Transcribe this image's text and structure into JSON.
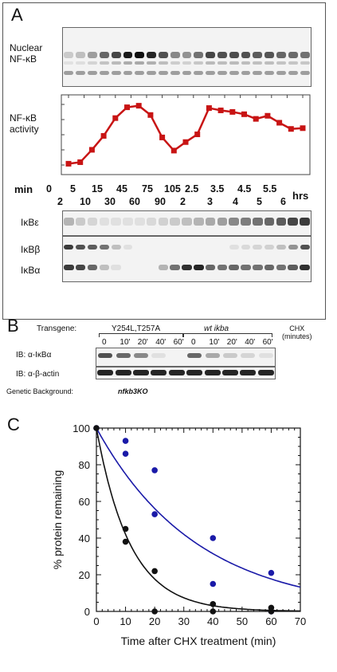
{
  "panelA": {
    "letter": "A",
    "nuclear_label": [
      "Nuclear",
      "NF-κB"
    ],
    "activity_label": [
      "NF-κB",
      "activity"
    ],
    "min_label": "min",
    "hrs_label": "hrs",
    "top_ticks": [
      "0",
      "5",
      "15",
      "45",
      "75",
      "105",
      "2.5",
      "3.5",
      "4.5",
      "5.5"
    ],
    "bottom_ticks": [
      "2",
      "10",
      "30",
      "60",
      "90",
      "2",
      "3",
      "4",
      "5",
      "6"
    ],
    "ikbe_label": "IκBε",
    "ikbb_label": "IκBβ",
    "ikba_label": "IκBα"
  },
  "panelB": {
    "letter": "B",
    "transgene_label": "Transgene:",
    "group1": "Y254L,T257A",
    "group2": "wt ikba",
    "chx_label": [
      "CHX",
      "(minutes)"
    ],
    "times1": [
      "0",
      "10'",
      "20'",
      "40'",
      "60'"
    ],
    "times2": [
      "0",
      "10'",
      "20'",
      "40'",
      "60'"
    ],
    "ib1": "IB: α-IκBα",
    "ib2": "IB: α-β-actin",
    "genetic_label": "Genetic Background:",
    "genetic_value": "nfkb3KO"
  },
  "panelC": {
    "letter": "C"
  },
  "chart_data": [
    {
      "type": "line",
      "series": [
        {
          "values": [
            13,
            15,
            31,
            49,
            72,
            86,
            88,
            76,
            47,
            30,
            41,
            51,
            85,
            82,
            80,
            77,
            71,
            75,
            66,
            58,
            59
          ]
        }
      ],
      "color": "#c81414"
    },
    {
      "type": "scatter",
      "xlabel": "Time after CHX treatment (min)",
      "ylabel": "% protein remaining",
      "xlim": [
        0,
        70
      ],
      "ylim": [
        0,
        100
      ],
      "xticks": [
        "0",
        "10",
        "20",
        "30",
        "40",
        "50",
        "60",
        "70"
      ],
      "yticks": [
        "0",
        "20",
        "40",
        "60",
        "80",
        "100"
      ],
      "series": [
        {
          "color": "#1a1aa8",
          "points": [
            [
              0,
              100
            ],
            [
              10,
              93
            ],
            [
              10,
              86
            ],
            [
              20,
              77
            ],
            [
              20,
              53
            ],
            [
              40,
              40
            ],
            [
              40,
              15
            ],
            [
              60,
              21
            ],
            [
              60,
              0
            ]
          ],
          "fit_halflife_min": 24
        },
        {
          "color": "#111111",
          "points": [
            [
              0,
              100
            ],
            [
              10,
              45
            ],
            [
              10,
              38
            ],
            [
              20,
              22
            ],
            [
              20,
              0
            ],
            [
              40,
              4
            ],
            [
              40,
              0
            ],
            [
              60,
              2
            ],
            [
              60,
              0
            ]
          ],
          "fit_halflife_min": 8
        }
      ]
    }
  ]
}
